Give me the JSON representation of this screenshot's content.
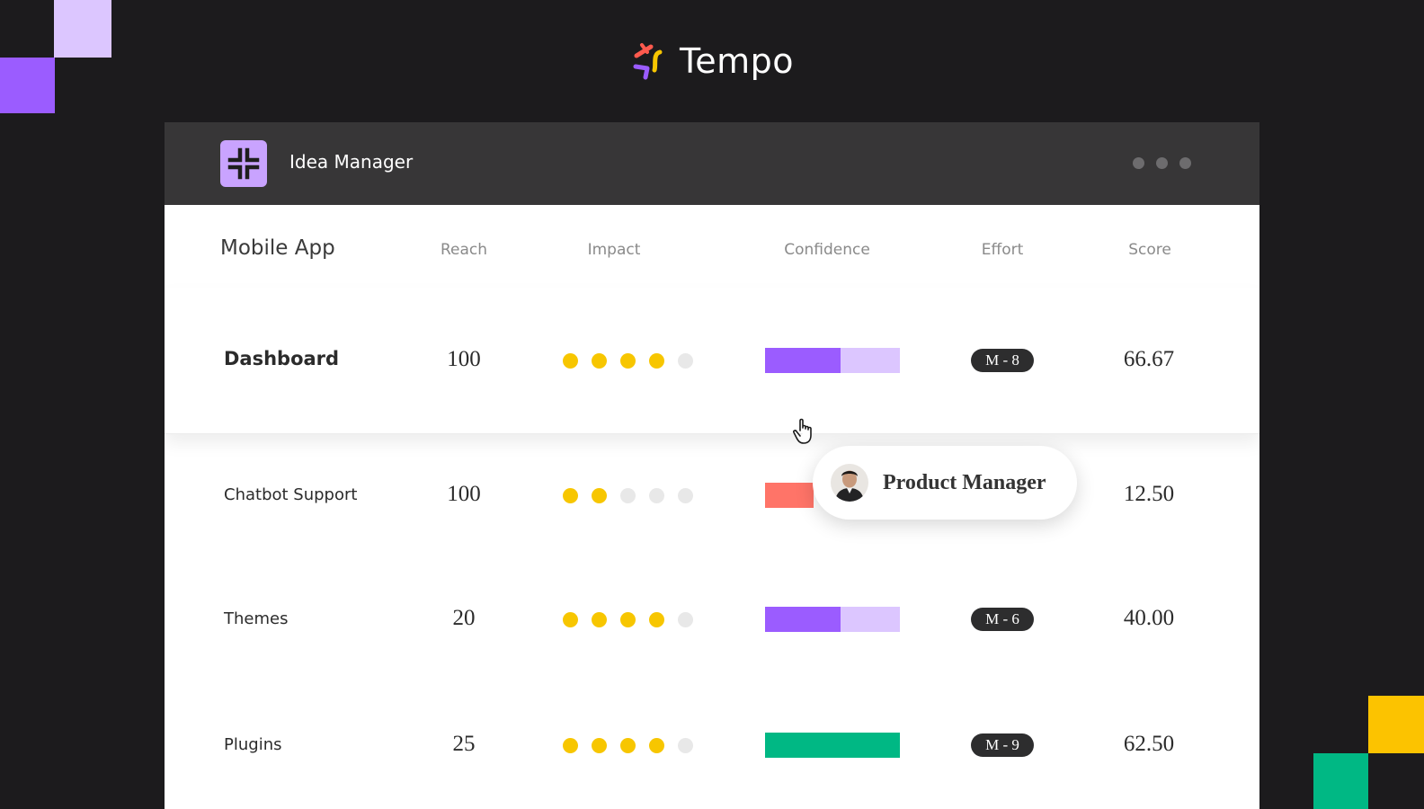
{
  "brand": {
    "name": "Tempo"
  },
  "window": {
    "app_title": "Idea Manager",
    "menu_icon": "more-dots-icon"
  },
  "table": {
    "title": "Mobile App",
    "headers": {
      "reach": "Reach",
      "impact": "Impact",
      "confidence": "Confidence",
      "effort": "Effort",
      "score": "Score"
    },
    "rows": [
      {
        "name": "Dashboard",
        "reach": "100",
        "impact": 4,
        "confidence": 0.56,
        "confidence_color": "#9b5cff",
        "effort": "M - 8",
        "score": "66.67"
      },
      {
        "name": "Chatbot Support",
        "reach": "100",
        "impact": 2,
        "confidence": 0.36,
        "confidence_color": "#ff7468",
        "effort": "",
        "score": "12.50"
      },
      {
        "name": "Themes",
        "reach": "20",
        "impact": 4,
        "confidence": 0.56,
        "confidence_color": "#9b5cff",
        "effort": "M - 6",
        "score": "40.00"
      },
      {
        "name": "Plugins",
        "reach": "25",
        "impact": 4,
        "confidence": 1.0,
        "confidence_color": "#00b884",
        "effort": "M - 9",
        "score": "62.50"
      }
    ]
  },
  "tooltip": {
    "label": "Product Manager"
  },
  "colors": {
    "background": "#1c1b1d",
    "accent_purple": "#9b5cff",
    "accent_light_purple": "#dcc6ff",
    "accent_yellow": "#f7c600",
    "accent_green": "#00b884",
    "accent_coral": "#ff7468"
  }
}
